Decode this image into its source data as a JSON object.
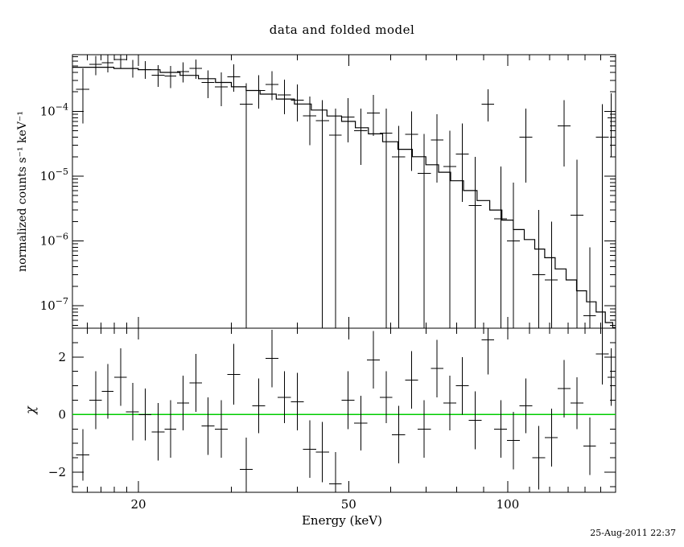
{
  "title": "data and folded model",
  "timestamp": "25-Aug-2011 22:37",
  "colors": {
    "background": "#ffffff",
    "axes": "#000000",
    "model_line": "#000000",
    "data_marks": "#000000",
    "zero_line": "#00cc00"
  },
  "chart_data": [
    {
      "type": "line",
      "panel": "top",
      "title": "data and folded model",
      "xlabel": "",
      "ylabel": "normalized counts s⁻¹ keV⁻¹",
      "xscale": "log",
      "yscale": "log",
      "xlim": [
        15,
        160
      ],
      "ylim": [
        4.5e-08,
        0.00075
      ],
      "xticks": [
        20,
        50,
        100
      ],
      "xticks_minor": [
        16,
        17,
        18,
        19,
        30,
        40,
        60,
        70,
        80,
        90,
        110,
        120,
        130,
        140,
        150,
        160
      ],
      "yticks": [
        1e-07,
        1e-06,
        1e-05,
        0.0001
      ],
      "legend": "none",
      "grid": false,
      "model_step": {
        "x": [
          15,
          17,
          19,
          21,
          23,
          25,
          27,
          29,
          31,
          33,
          35,
          38,
          41,
          44,
          47,
          50,
          53,
          56,
          60,
          64,
          68,
          72,
          76,
          80,
          85,
          90,
          95,
          100,
          105,
          110,
          115,
          120,
          126,
          132,
          138,
          144,
          150,
          156,
          160
        ],
        "y": [
          0.00048,
          0.00048,
          0.00046,
          0.00044,
          0.0004,
          0.00036,
          0.00032,
          0.00028,
          0.00024,
          0.00021,
          0.000185,
          0.000155,
          0.00013,
          0.000105,
          8.5e-05,
          7e-05,
          5.6e-05,
          4.5e-05,
          3.4e-05,
          2.6e-05,
          2e-05,
          1.5e-05,
          1.15e-05,
          8.5e-06,
          6e-06,
          4.2e-06,
          3e-06,
          2.1e-06,
          1.5e-06,
          1.05e-06,
          7.5e-07,
          5.5e-07,
          3.7e-07,
          2.5e-07,
          1.7e-07,
          1.15e-07,
          8e-08,
          5.5e-08,
          4.6e-08
        ]
      },
      "data_points": {
        "columns": [
          "energy_keV",
          "energy_halfwidth_keV",
          "rate",
          "errbar_low_bound",
          "errbar_high_bound"
        ],
        "rows": [
          [
            15.7,
            0.45,
            0.00022,
            6.5e-05,
            0.00046
          ],
          [
            16.6,
            0.45,
            0.00053,
            0.00036,
            0.00072
          ],
          [
            17.5,
            0.45,
            0.00056,
            0.0004,
            0.00074
          ],
          [
            18.5,
            0.5,
            0.00063,
            0.00046,
            0.00082
          ],
          [
            19.5,
            0.55,
            0.00046,
            0.00033,
            0.00062
          ],
          [
            20.6,
            0.55,
            0.000445,
            0.00032,
            0.0006
          ],
          [
            21.8,
            0.6,
            0.00036,
            0.00024,
            0.00052
          ],
          [
            23.0,
            0.6,
            0.00035,
            0.00023,
            0.0005
          ],
          [
            24.3,
            0.65,
            0.00041,
            0.00028,
            0.00057
          ],
          [
            25.7,
            0.7,
            0.00046,
            0.00032,
            0.00063
          ],
          [
            27.1,
            0.75,
            0.00028,
            0.00016,
            0.00043
          ],
          [
            28.7,
            0.8,
            0.00024,
            0.00012,
            0.0004
          ],
          [
            30.3,
            0.85,
            0.00034,
            0.0002,
            0.00053
          ],
          [
            32.0,
            0.9,
            0.00013,
            4.5e-08,
            0.00027
          ],
          [
            33.8,
            0.95,
            0.00021,
            0.00011,
            0.00036
          ],
          [
            35.8,
            1.0,
            0.00026,
            0.00015,
            0.00042
          ],
          [
            37.8,
            1.1,
            0.00018,
            9e-05,
            0.00031
          ],
          [
            40.0,
            1.1,
            0.00015,
            7e-05,
            0.00026
          ],
          [
            42.2,
            1.2,
            8.5e-05,
            3e-05,
            0.00017
          ],
          [
            44.6,
            1.3,
            7.2e-05,
            4.5e-08,
            0.00015
          ],
          [
            47.2,
            1.3,
            4.3e-05,
            4.5e-08,
            0.00011
          ],
          [
            49.9,
            1.4,
            8.2e-05,
            3.3e-05,
            0.00016
          ],
          [
            52.7,
            1.5,
            5e-05,
            1.5e-05,
            0.00011
          ],
          [
            55.7,
            1.6,
            9.5e-05,
            4.2e-05,
            0.00018
          ],
          [
            58.9,
            1.6,
            4.6e-05,
            4.5e-08,
            0.00011
          ],
          [
            62.2,
            1.8,
            2e-05,
            4.5e-08,
            6e-05
          ],
          [
            65.8,
            1.8,
            4.4e-05,
            1.2e-05,
            0.0001
          ],
          [
            69.5,
            2.0,
            1.1e-05,
            4.5e-08,
            4.5e-05
          ],
          [
            73.5,
            2.0,
            3.6e-05,
            8e-06,
            9e-05
          ],
          [
            77.7,
            2.2,
            1.4e-05,
            4.5e-08,
            5e-05
          ],
          [
            82.1,
            2.3,
            2.2e-05,
            4e-06,
            6.5e-05
          ],
          [
            86.8,
            2.4,
            3.5e-06,
            4.5e-08,
            2e-05
          ],
          [
            91.7,
            2.5,
            0.00013,
            7e-05,
            0.00022
          ],
          [
            97.0,
            2.7,
            2.2e-06,
            4.5e-08,
            1.4e-05
          ],
          [
            102.5,
            2.9,
            1e-06,
            4.5e-08,
            8e-06
          ],
          [
            108.3,
            3.0,
            4e-05,
            8e-06,
            0.00011
          ],
          [
            114.5,
            3.2,
            3e-07,
            4.5e-08,
            3e-06
          ],
          [
            121.0,
            3.4,
            2.5e-07,
            4.5e-08,
            2e-06
          ],
          [
            127.9,
            3.5,
            6e-05,
            1.4e-05,
            0.00015
          ],
          [
            135.2,
            3.8,
            2.5e-06,
            4.5e-08,
            1.8e-05
          ],
          [
            142.9,
            3.9,
            7e-08,
            4.5e-08,
            8e-07
          ],
          [
            151.0,
            4.2,
            4e-05,
            4.5e-08,
            0.00013
          ],
          [
            157.0,
            2.5,
            8e-05,
            2e-05,
            0.00019
          ]
        ]
      }
    },
    {
      "type": "scatter",
      "panel": "bottom",
      "xlabel": "Energy (keV)",
      "ylabel": "χ",
      "xscale": "log",
      "yscale": "linear",
      "xlim": [
        15,
        160
      ],
      "ylim": [
        -2.7,
        3.0
      ],
      "yticks": [
        -2,
        0,
        2
      ],
      "zero_line": 0,
      "residuals": {
        "columns": [
          "energy_keV",
          "energy_halfwidth_keV",
          "chi",
          "chi_err"
        ],
        "rows": [
          [
            15.7,
            0.45,
            -1.4,
            0.9
          ],
          [
            16.6,
            0.45,
            0.5,
            1.0
          ],
          [
            17.5,
            0.45,
            0.8,
            0.95
          ],
          [
            18.5,
            0.5,
            1.3,
            1.0
          ],
          [
            19.5,
            0.55,
            0.1,
            1.0
          ],
          [
            20.6,
            0.55,
            0.0,
            0.9
          ],
          [
            21.8,
            0.6,
            -0.6,
            1.0
          ],
          [
            23.0,
            0.6,
            -0.5,
            1.0
          ],
          [
            24.3,
            0.65,
            0.4,
            0.95
          ],
          [
            25.7,
            0.7,
            1.1,
            1.0
          ],
          [
            27.1,
            0.75,
            -0.4,
            1.0
          ],
          [
            28.7,
            0.8,
            -0.5,
            1.0
          ],
          [
            30.3,
            0.85,
            1.4,
            1.05
          ],
          [
            32.0,
            0.9,
            -1.9,
            1.1
          ],
          [
            33.8,
            0.95,
            0.3,
            0.95
          ],
          [
            35.8,
            1.0,
            1.95,
            1.0
          ],
          [
            37.8,
            1.1,
            0.6,
            0.9
          ],
          [
            40.0,
            1.1,
            0.45,
            1.0
          ],
          [
            42.2,
            1.2,
            -1.2,
            1.0
          ],
          [
            44.6,
            1.3,
            -1.3,
            1.05
          ],
          [
            47.2,
            1.3,
            -2.4,
            1.1
          ],
          [
            49.9,
            1.4,
            0.5,
            1.0
          ],
          [
            52.7,
            1.5,
            -0.3,
            0.95
          ],
          [
            55.7,
            1.6,
            1.9,
            1.0
          ],
          [
            58.9,
            1.6,
            0.6,
            0.9
          ],
          [
            62.2,
            1.8,
            -0.7,
            1.0
          ],
          [
            65.8,
            1.8,
            1.2,
            1.0
          ],
          [
            69.5,
            2.0,
            -0.5,
            1.0
          ],
          [
            73.5,
            2.0,
            1.6,
            1.0
          ],
          [
            77.7,
            2.2,
            0.4,
            0.95
          ],
          [
            82.1,
            2.3,
            1.0,
            1.0
          ],
          [
            86.8,
            2.4,
            -0.2,
            1.0
          ],
          [
            91.7,
            2.5,
            2.6,
            1.2
          ],
          [
            97.0,
            2.7,
            -0.5,
            1.0
          ],
          [
            102.5,
            2.9,
            -0.9,
            1.0
          ],
          [
            108.3,
            3.0,
            0.3,
            0.95
          ],
          [
            114.5,
            3.2,
            -1.5,
            1.1
          ],
          [
            121.0,
            3.4,
            -0.8,
            1.0
          ],
          [
            127.9,
            3.5,
            0.9,
            1.0
          ],
          [
            135.2,
            3.8,
            0.4,
            0.9
          ],
          [
            142.9,
            3.9,
            -1.1,
            1.0
          ],
          [
            151.0,
            4.2,
            2.1,
            1.05
          ],
          [
            157.0,
            2.5,
            1.3,
            1.0
          ]
        ]
      }
    }
  ]
}
